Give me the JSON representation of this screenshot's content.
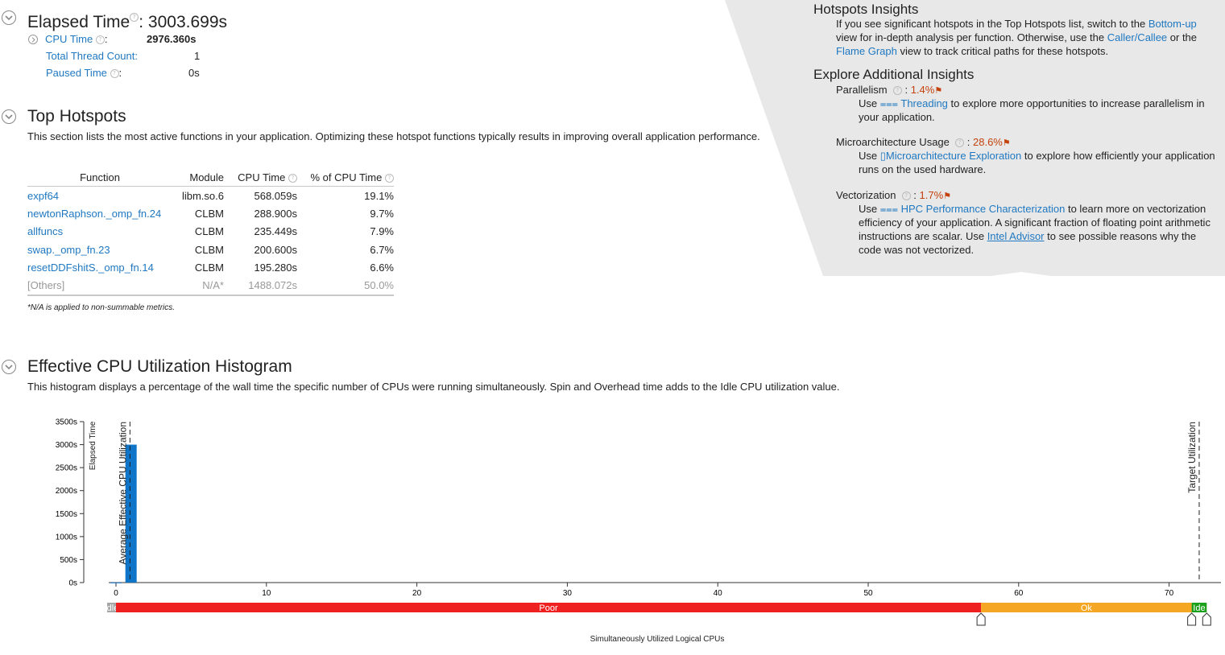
{
  "summary": {
    "elapsed_label": "Elapsed Time",
    "elapsed_value": ": 3003.699s",
    "cpu_time_label": "CPU Time",
    "cpu_time_value": "2976.360s",
    "total_thread_label": "Total Thread Count:",
    "total_thread_value": "1",
    "paused_label": "Paused Time",
    "paused_value": "0s",
    "colon": ":"
  },
  "hotspots": {
    "title": "Top Hotspots",
    "description": "This section lists the most active functions in your application. Optimizing these hotspot functions typically results in improving overall application performance.",
    "columns": [
      "Function",
      "Module",
      "CPU Time",
      "% of CPU Time"
    ],
    "rows": [
      {
        "function": "expf64",
        "module": "libm.so.6",
        "cpu": "568.059s",
        "pct": "19.1%"
      },
      {
        "function": "newtonRaphson._omp_fn.24",
        "module": "CLBM",
        "cpu": "288.900s",
        "pct": "9.7%"
      },
      {
        "function": "allfuncs",
        "module": "CLBM",
        "cpu": "235.449s",
        "pct": "7.9%"
      },
      {
        "function": "swap._omp_fn.23",
        "module": "CLBM",
        "cpu": "200.600s",
        "pct": "6.7%"
      },
      {
        "function": "resetDDFshitS._omp_fn.14",
        "module": "CLBM",
        "cpu": "195.280s",
        "pct": "6.6%"
      }
    ],
    "others": {
      "function": "[Others]",
      "module": "N/A*",
      "cpu": "1488.072s",
      "pct": "50.0%"
    },
    "footnote": "*N/A is applied to non-summable metrics."
  },
  "insights": {
    "hotspots_title": "Hotspots Insights",
    "hotspots_text_1": "If you see significant hotspots in the Top Hotspots list, switch to the ",
    "bottom_up_link": "Bottom-up",
    "hotspots_text_2": " view for in-depth analysis per function. Otherwise, use the ",
    "caller_callee_link": "Caller/Callee",
    "hotspots_text_3": " or the ",
    "flame_graph_link": "Flame Graph",
    "hotspots_text_4": " view to track critical paths for these hotspots.",
    "explore_title": "Explore Additional Insights",
    "parallelism": {
      "label": "Parallelism",
      "value": "1.4%",
      "use": "Use ",
      "link": "Threading",
      "text": " to explore more opportunities to increase parallelism in your application."
    },
    "microarch": {
      "label": "Microarchitecture Usage",
      "value": "28.6%",
      "use": "Use ",
      "link": "Microarchitecture Exploration",
      "text": " to explore how efficiently your application runs on the used hardware."
    },
    "vectorization": {
      "label": "Vectorization",
      "value": "1.7%",
      "use": "Use ",
      "link": "HPC Performance Characterization",
      "text_1": " to learn more on vectorization efficiency of your application. A significant fraction of floating point arithmetic instructions are scalar. Use ",
      "link2": "Intel Advisor",
      "text_2": " to see possible reasons why the code was not vectorized."
    },
    "colon": ":"
  },
  "histogram": {
    "title": "Effective CPU Utilization Histogram",
    "description": "This histogram displays a percentage of the wall time the specific number of CPUs were running simultaneously. Spin and Overhead time adds to the Idle CPU utilization value.",
    "bar_color": "#0f75c8",
    "zones": [
      {
        "label": "Idle",
        "color": "#a6a6a6"
      },
      {
        "label": "Poor",
        "color": "#ef2020"
      },
      {
        "label": "Ok",
        "color": "#f5a623"
      },
      {
        "label": "Ide",
        "color": "#1aa01a"
      }
    ]
  },
  "chart_data": {
    "type": "bar",
    "xlabel": "Simultaneously Utilized Logical CPUs",
    "ylabel": "Elapsed Time",
    "ylim": [
      0,
      3500
    ],
    "xlim": [
      -0.5,
      73.5
    ],
    "yticks": [
      "0s",
      "500s",
      "1000s",
      "1500s",
      "2000s",
      "2500s",
      "3000s",
      "3500s"
    ],
    "ytick_values": [
      0,
      500,
      1000,
      1500,
      2000,
      2500,
      3000,
      3500
    ],
    "xticks": [
      0,
      10,
      20,
      30,
      40,
      50,
      60,
      70
    ],
    "x": [
      0,
      1
    ],
    "values": [
      3,
      3000
    ],
    "markers": [
      {
        "label": "Average Effective CPU Utilization",
        "x": 0.93
      },
      {
        "label": "Target Utilization",
        "x": 72.0
      }
    ],
    "zone_bounds": [
      -0.5,
      0.0,
      57.5,
      71.5,
      72.5
    ],
    "grid": false
  }
}
